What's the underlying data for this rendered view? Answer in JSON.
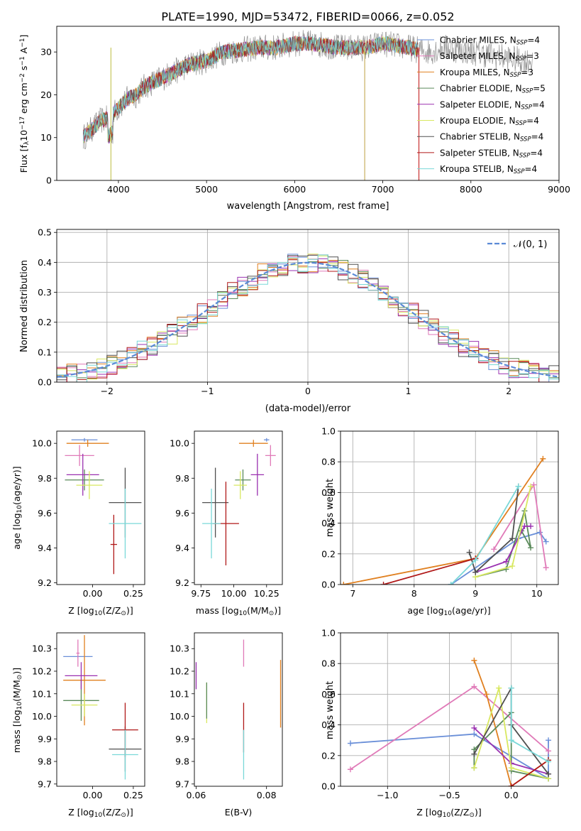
{
  "figure": {
    "title": "PLATE=1990, MJD=53472, FIBERID=0066, z=0.052"
  },
  "colors": {
    "chabrier_miles": "#6a8fd8",
    "salpeter_miles": "#e07ab8",
    "kroupa_miles": "#e08020",
    "chabrier_elodie": "#5a8a5a",
    "salpeter_elodie": "#9a30b0",
    "kroupa_elodie": "#d8e860",
    "chabrier_stelib": "#505050",
    "salpeter_stelib": "#b01818",
    "kroupa_stelib": "#7ad8d8",
    "gaussian": "#5b8ad6",
    "grid": "#b0b0b0"
  },
  "chart_data": [
    {
      "id": "spectrum",
      "type": "line",
      "xlabel": "wavelength [Angstrom, rest frame]",
      "ylabel": "Flux [f",
      "ylabel_parts": [
        "Flux [f",
        "λ",
        "10",
        "−17",
        " erg cm",
        "−2",
        " s",
        "−1",
        " A",
        "−1",
        "]"
      ],
      "xlim": [
        3300,
        9000
      ],
      "ylim": [
        0,
        36
      ],
      "xticks": [
        "4000",
        "5000",
        "6000",
        "7000",
        "8000",
        "9000"
      ],
      "yticks": [
        "0",
        "10",
        "20",
        "30"
      ],
      "legend_position": "upper right",
      "series": [
        {
          "key": "chabrier_miles",
          "name": "Chabrier MILES, N",
          "sub": "SSP",
          "n": "=4"
        },
        {
          "key": "salpeter_miles",
          "name": "Salpeter MILES, N",
          "sub": "SSP",
          "n": "=3"
        },
        {
          "key": "kroupa_miles",
          "name": "Kroupa MILES, N",
          "sub": "SSP",
          "n": "=3"
        },
        {
          "key": "chabrier_elodie",
          "name": "Chabrier ELODIE, N",
          "sub": "SSP",
          "n": "=5"
        },
        {
          "key": "salpeter_elodie",
          "name": "Salpeter ELODIE, N",
          "sub": "SSP",
          "n": "=4"
        },
        {
          "key": "kroupa_elodie",
          "name": "Kroupa ELODIE, N",
          "sub": "SSP",
          "n": "=4"
        },
        {
          "key": "chabrier_stelib",
          "name": "Chabrier STELIB, N",
          "sub": "SSP",
          "n": "=4"
        },
        {
          "key": "salpeter_stelib",
          "name": "Salpeter STELIB, N",
          "sub": "SSP",
          "n": "=4"
        },
        {
          "key": "kroupa_stelib",
          "name": "Kroupa STELIB, N",
          "sub": "SSP",
          "n": "=4"
        }
      ],
      "continuum": [
        [
          3600,
          10
        ],
        [
          3700,
          12
        ],
        [
          3800,
          14
        ],
        [
          3900,
          14.5
        ],
        [
          4000,
          17
        ],
        [
          4100,
          19
        ],
        [
          4200,
          20
        ],
        [
          4300,
          22
        ],
        [
          4400,
          23
        ],
        [
          4500,
          24
        ],
        [
          4600,
          25
        ],
        [
          4800,
          27
        ],
        [
          5000,
          28
        ],
        [
          5200,
          30
        ],
        [
          5400,
          30.5
        ],
        [
          5600,
          31
        ],
        [
          5800,
          31
        ],
        [
          6000,
          32
        ],
        [
          6200,
          32
        ],
        [
          6500,
          31
        ],
        [
          6800,
          31
        ],
        [
          7000,
          32
        ],
        [
          7300,
          31
        ],
        [
          7500,
          30
        ],
        [
          7700,
          31
        ],
        [
          8000,
          30
        ],
        [
          8300,
          29
        ],
        [
          8600,
          28
        ]
      ]
    },
    {
      "id": "residuals",
      "type": "line",
      "xlabel": "(data-model)/error",
      "ylabel": "Normed distribution",
      "xlim": [
        -2.5,
        2.5
      ],
      "ylim": [
        0,
        0.51
      ],
      "xticks": [
        "−2",
        "−1",
        "0",
        "1",
        "2"
      ],
      "yticks": [
        "0.0",
        "0.1",
        "0.2",
        "0.3",
        "0.4",
        "0.5"
      ],
      "grid": true,
      "legend_position": "upper right",
      "legend_label": "𝒩(0, 1)",
      "series": [
        {
          "name": "𝒩(0, 1)",
          "mean": 0,
          "sigma": 1
        }
      ]
    },
    {
      "id": "age_vs_Z",
      "type": "scatter",
      "xlabel": "Z [log",
      "xlabel_parts": [
        "Z [log",
        "10",
        "(Z/Z",
        "⊙",
        ")]"
      ],
      "ylabel_parts": [
        "age  [log",
        "10",
        "(age/yr)]"
      ],
      "xlim": [
        -0.22,
        0.32
      ],
      "ylim": [
        9.19,
        10.07
      ],
      "xticks": [
        "0.00",
        "0.25"
      ],
      "yticks": [
        "9.2",
        "9.4",
        "9.6",
        "9.8",
        "10.0"
      ],
      "points": [
        {
          "key": "chabrier_miles",
          "x": -0.05,
          "y": 10.02,
          "xerr": 0.08,
          "yerr": 0.01
        },
        {
          "key": "salpeter_miles",
          "x": -0.08,
          "y": 9.93,
          "xerr": 0.09,
          "yerr": 0.06
        },
        {
          "key": "kroupa_miles",
          "x": -0.03,
          "y": 10.0,
          "xerr": 0.13,
          "yerr": 0.02
        },
        {
          "key": "chabrier_elodie",
          "x": -0.05,
          "y": 9.79,
          "xerr": 0.12,
          "yerr": 0.06
        },
        {
          "key": "salpeter_elodie",
          "x": -0.06,
          "y": 9.82,
          "xerr": 0.1,
          "yerr": 0.12
        },
        {
          "key": "kroupa_elodie",
          "x": -0.02,
          "y": 9.76,
          "xerr": 0.08,
          "yerr": 0.08
        },
        {
          "key": "chabrier_stelib",
          "x": 0.2,
          "y": 9.66,
          "xerr": 0.1,
          "yerr": 0.2
        },
        {
          "key": "salpeter_stelib",
          "x": 0.13,
          "y": 9.42,
          "xerr": 0.02,
          "yerr": 0.17
        },
        {
          "key": "kroupa_stelib",
          "x": 0.2,
          "y": 9.54,
          "xerr": 0.1,
          "yerr": 0.2
        }
      ]
    },
    {
      "id": "age_vs_mass",
      "type": "scatter",
      "xlabel_parts": [
        "mass [log",
        "10",
        "(M/M",
        "⊙",
        ")]"
      ],
      "xlim": [
        9.7,
        10.37
      ],
      "ylim": [
        9.19,
        10.07
      ],
      "xticks": [
        "9.75",
        "10.00",
        "10.25"
      ],
      "yticks": [
        "9.2",
        "9.4",
        "9.6",
        "9.8",
        "10.0"
      ],
      "points": [
        {
          "key": "chabrier_miles",
          "x": 10.25,
          "y": 10.02,
          "xerr": 0.02,
          "yerr": 0.01
        },
        {
          "key": "salpeter_miles",
          "x": 10.28,
          "y": 9.93,
          "xerr": 0.04,
          "yerr": 0.06
        },
        {
          "key": "kroupa_miles",
          "x": 10.15,
          "y": 10.0,
          "xerr": 0.11,
          "yerr": 0.02
        },
        {
          "key": "chabrier_elodie",
          "x": 10.07,
          "y": 9.79,
          "xerr": 0.06,
          "yerr": 0.06
        },
        {
          "key": "salpeter_elodie",
          "x": 10.18,
          "y": 9.82,
          "xerr": 0.05,
          "yerr": 0.12
        },
        {
          "key": "kroupa_elodie",
          "x": 10.05,
          "y": 9.76,
          "xerr": 0.05,
          "yerr": 0.08
        },
        {
          "key": "chabrier_stelib",
          "x": 9.86,
          "y": 9.66,
          "xerr": 0.1,
          "yerr": 0.2
        },
        {
          "key": "salpeter_stelib",
          "x": 9.94,
          "y": 9.54,
          "xerr": 0.1,
          "yerr": 0.24
        },
        {
          "key": "kroupa_stelib",
          "x": 9.83,
          "y": 9.54,
          "xerr": 0.07,
          "yerr": 0.2
        }
      ]
    },
    {
      "id": "massweight_vs_age",
      "type": "line",
      "xlabel_parts": [
        "age  [log",
        "10",
        "(age/yr)]"
      ],
      "ylabel": "mass weight",
      "xlim": [
        6.8,
        10.35
      ],
      "ylim": [
        0,
        1.0
      ],
      "xticks": [
        "7",
        "8",
        "9",
        "10"
      ],
      "yticks": [
        "0.0",
        "0.2",
        "0.4",
        "0.6",
        "0.8",
        "1.0"
      ],
      "grid": true,
      "series": [
        {
          "key": "chabrier_miles",
          "points": [
            [
              8.6,
              0.0
            ],
            [
              9.7,
              0.3
            ],
            [
              10.05,
              0.34
            ],
            [
              10.15,
              0.28
            ]
          ]
        },
        {
          "key": "salpeter_miles",
          "points": [
            [
              9.3,
              0.23
            ],
            [
              9.95,
              0.65
            ],
            [
              10.15,
              0.11
            ]
          ]
        },
        {
          "key": "kroupa_miles",
          "points": [
            [
              6.85,
              0.0
            ],
            [
              9.0,
              0.17
            ],
            [
              10.1,
              0.82
            ]
          ]
        },
        {
          "key": "chabrier_elodie",
          "points": [
            [
              9.0,
              0.05
            ],
            [
              9.5,
              0.1
            ],
            [
              9.8,
              0.48
            ],
            [
              9.9,
              0.24
            ],
            [
              9.75,
              0.35
            ]
          ]
        },
        {
          "key": "salpeter_elodie",
          "points": [
            [
              9.0,
              0.08
            ],
            [
              9.5,
              0.15
            ],
            [
              9.8,
              0.38
            ],
            [
              9.9,
              0.38
            ]
          ]
        },
        {
          "key": "kroupa_elodie",
          "points": [
            [
              9.0,
              0.05
            ],
            [
              9.6,
              0.12
            ],
            [
              9.9,
              0.64
            ]
          ]
        },
        {
          "key": "chabrier_stelib",
          "points": [
            [
              8.9,
              0.21
            ],
            [
              9.0,
              0.08
            ],
            [
              9.6,
              0.3
            ],
            [
              9.7,
              0.64
            ]
          ]
        },
        {
          "key": "salpeter_stelib",
          "points": [
            [
              7.5,
              0.0
            ],
            [
              9.0,
              0.17
            ]
          ]
        },
        {
          "key": "kroupa_stelib",
          "points": [
            [
              8.6,
              0.0
            ],
            [
              9.0,
              0.16
            ],
            [
              9.7,
              0.64
            ]
          ]
        }
      ]
    },
    {
      "id": "mass_vs_Z",
      "type": "scatter",
      "xlabel_parts": [
        "Z [log",
        "10",
        "(Z/Z",
        "⊙",
        ")]"
      ],
      "ylabel_parts": [
        "mass [log",
        "10",
        "(M/M",
        "⊙",
        ")]"
      ],
      "xlim": [
        -0.22,
        0.32
      ],
      "ylim": [
        9.69,
        10.37
      ],
      "xticks": [
        "0.00",
        "0.25"
      ],
      "yticks": [
        "9.7",
        "9.8",
        "9.9",
        "10.0",
        "10.1",
        "10.2",
        "10.3"
      ],
      "points": [
        {
          "key": "chabrier_miles",
          "x": -0.09,
          "y": 10.265,
          "xerr": 0.09,
          "yerr": 0.005
        },
        {
          "key": "salpeter_miles",
          "x": -0.09,
          "y": 10.28,
          "xerr": 0.01,
          "yerr": 0.06
        },
        {
          "key": "kroupa_miles",
          "x": -0.05,
          "y": 10.16,
          "xerr": 0.13,
          "yerr": 0.2
        },
        {
          "key": "chabrier_elodie",
          "x": -0.07,
          "y": 10.07,
          "xerr": 0.11,
          "yerr": 0.09
        },
        {
          "key": "salpeter_elodie",
          "x": -0.07,
          "y": 10.18,
          "xerr": 0.1,
          "yerr": 0.06
        },
        {
          "key": "kroupa_elodie",
          "x": -0.05,
          "y": 10.05,
          "xerr": 0.08,
          "yerr": 0.05
        },
        {
          "key": "chabrier_stelib",
          "x": 0.2,
          "y": 9.855,
          "xerr": 0.1,
          "yerr": 0.1
        },
        {
          "key": "salpeter_stelib",
          "x": 0.2,
          "y": 9.94,
          "xerr": 0.08,
          "yerr": 0.12
        },
        {
          "key": "kroupa_stelib",
          "x": 0.2,
          "y": 9.83,
          "xerr": 0.08,
          "yerr": 0.11
        }
      ]
    },
    {
      "id": "mass_vs_ebv",
      "type": "scatter",
      "xlabel": "E(B-V)",
      "xlim": [
        0.0595,
        0.0845
      ],
      "ylim": [
        9.69,
        10.37
      ],
      "xticks": [
        "0.06",
        "0.08"
      ],
      "yticks": [
        "9.7",
        "9.8",
        "9.9",
        "10.0",
        "10.1",
        "10.2",
        "10.3"
      ],
      "points": [
        {
          "key": "salpeter_miles",
          "x": 0.0735,
          "y": 10.28,
          "yerr": 0.06
        },
        {
          "key": "salpeter_elodie",
          "x": 0.06,
          "y": 10.18,
          "yerr": 0.06
        },
        {
          "key": "kroupa_elodie",
          "x": 0.063,
          "y": 10.06,
          "yerr": 0.09
        },
        {
          "key": "chabrier_elodie",
          "x": 0.063,
          "y": 10.07,
          "yerr": 0.08
        },
        {
          "key": "kroupa_miles",
          "x": 0.084,
          "y": 10.1,
          "yerr": 0.15
        },
        {
          "key": "salpeter_stelib",
          "x": 0.0735,
          "y": 9.95,
          "yerr": 0.11
        },
        {
          "key": "kroupa_stelib",
          "x": 0.0735,
          "y": 9.83,
          "yerr": 0.11
        }
      ]
    },
    {
      "id": "massweight_vs_Z",
      "type": "line",
      "xlabel_parts": [
        "Z [log",
        "10",
        "(Z/Z",
        "⊙",
        ")]"
      ],
      "ylabel": "mass weight",
      "xlim": [
        -1.38,
        0.38
      ],
      "ylim": [
        0,
        1.0
      ],
      "xticks": [
        "−1.0",
        "−0.5",
        "0.0"
      ],
      "yticks": [
        "0.0",
        "0.2",
        "0.4",
        "0.6",
        "0.8",
        "1.0"
      ],
      "grid": true,
      "series": [
        {
          "key": "chabrier_miles",
          "points": [
            [
              -1.3,
              0.28
            ],
            [
              -0.3,
              0.34
            ],
            [
              0.3,
              0.05
            ],
            [
              0.3,
              0.3
            ]
          ]
        },
        {
          "key": "salpeter_miles",
          "points": [
            [
              -1.3,
              0.11
            ],
            [
              -0.3,
              0.65
            ],
            [
              0.3,
              0.23
            ]
          ]
        },
        {
          "key": "kroupa_miles",
          "points": [
            [
              -0.3,
              0.82
            ],
            [
              -0.2,
              0.6
            ],
            [
              0.0,
              0.0
            ],
            [
              0.3,
              0.17
            ]
          ]
        },
        {
          "key": "chabrier_elodie",
          "points": [
            [
              -0.3,
              0.12
            ],
            [
              -0.3,
              0.24
            ],
            [
              0.0,
              0.48
            ],
            [
              0.0,
              0.1
            ],
            [
              0.3,
              0.05
            ]
          ]
        },
        {
          "key": "salpeter_elodie",
          "points": [
            [
              -0.3,
              0.38
            ],
            [
              0.0,
              0.15
            ],
            [
              0.3,
              0.08
            ]
          ]
        },
        {
          "key": "kroupa_elodie",
          "points": [
            [
              -0.3,
              0.12
            ],
            [
              -0.1,
              0.64
            ],
            [
              0.0,
              0.12
            ],
            [
              0.3,
              0.05
            ]
          ]
        },
        {
          "key": "chabrier_stelib",
          "points": [
            [
              -0.3,
              0.21
            ],
            [
              0.0,
              0.64
            ],
            [
              0.0,
              0.4
            ],
            [
              0.3,
              0.08
            ]
          ]
        },
        {
          "key": "salpeter_stelib",
          "points": [
            [
              0.0,
              0.0
            ],
            [
              0.3,
              0.17
            ]
          ]
        },
        {
          "key": "kroupa_stelib",
          "points": [
            [
              0.0,
              0.64
            ],
            [
              0.0,
              0.3
            ],
            [
              0.3,
              0.16
            ]
          ]
        }
      ]
    }
  ]
}
